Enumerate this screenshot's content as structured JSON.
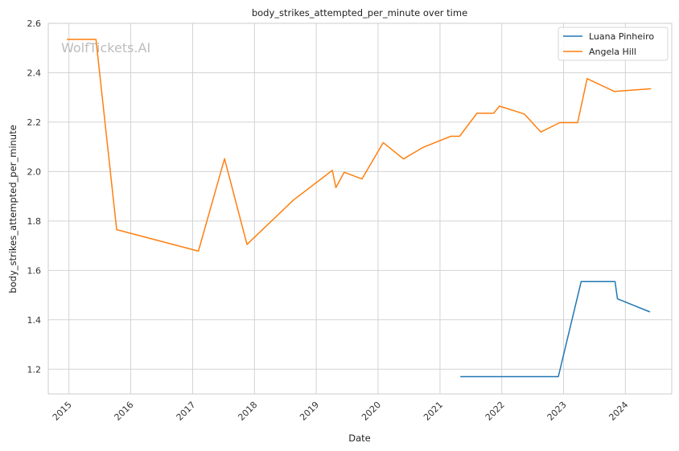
{
  "chart_data": {
    "type": "line",
    "title": "body_strikes_attempted_per_minute over time",
    "xlabel": "Date",
    "ylabel": "body_strikes_attempted_per_minute",
    "watermark": "WolfTickets.AI",
    "x_axis": "date",
    "xlim": [
      "2014-09-01",
      "2024-10-01"
    ],
    "ylim": [
      1.1,
      2.6
    ],
    "x_ticks": [
      "2015",
      "2016",
      "2017",
      "2018",
      "2019",
      "2020",
      "2021",
      "2022",
      "2023",
      "2024"
    ],
    "y_ticks": [
      "1.2",
      "1.4",
      "1.6",
      "1.8",
      "2.0",
      "2.2",
      "2.4",
      "2.6"
    ],
    "grid": true,
    "legend_position": "top-right",
    "series": [
      {
        "name": "Luana Pinheiro",
        "color": "#1f77b4",
        "x": [
          "2021-05-01",
          "2022-12-01",
          "2023-04-15",
          "2023-11-01",
          "2023-11-15",
          "2024-05-25"
        ],
        "y": [
          1.17,
          1.17,
          1.555,
          1.555,
          1.485,
          1.432
        ]
      },
      {
        "name": "Angela Hill",
        "color": "#ff7f0e",
        "x": [
          "2014-12-20",
          "2015-06-10",
          "2015-10-10",
          "2017-02-04",
          "2017-07-08",
          "2017-11-18",
          "2018-08-20",
          "2019-04-06",
          "2019-04-27",
          "2019-06-15",
          "2019-09-28",
          "2020-02-01",
          "2020-05-30",
          "2020-09-20",
          "2021-03-06",
          "2021-04-27",
          "2021-08-07",
          "2021-11-14",
          "2021-12-18",
          "2022-05-14",
          "2022-08-20",
          "2022-12-10",
          "2023-03-25",
          "2023-05-20",
          "2023-10-28",
          "2024-06-01"
        ],
        "y": [
          2.535,
          2.535,
          1.765,
          1.678,
          2.052,
          1.705,
          1.885,
          2.005,
          1.935,
          1.997,
          1.97,
          2.117,
          2.051,
          2.097,
          2.143,
          2.143,
          2.236,
          2.236,
          2.265,
          2.233,
          2.16,
          2.198,
          2.198,
          2.376,
          2.324,
          2.335
        ]
      }
    ]
  }
}
